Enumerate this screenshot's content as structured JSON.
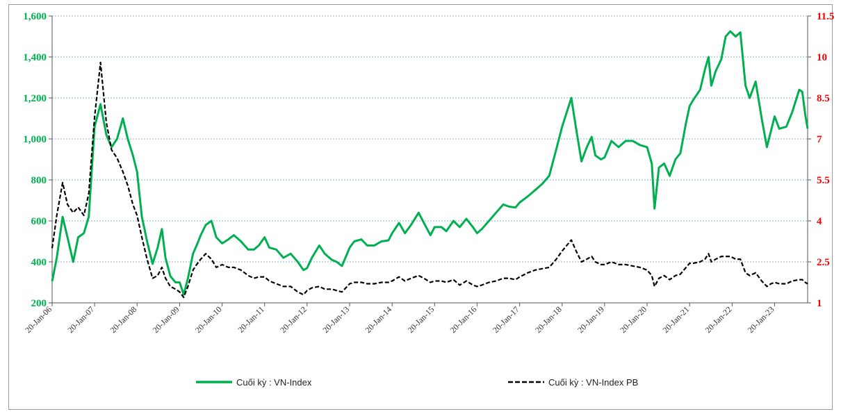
{
  "chart_data": {
    "type": "line",
    "title": "",
    "xlabel": "",
    "ylabel": "",
    "legend_position": "bottom",
    "grid": "horizontal dotted",
    "x_ticks": [
      "20-Jan-06",
      "20-Jan-07",
      "20-Jan-08",
      "20-Jan-09",
      "20-Jan-10",
      "20-Jan-11",
      "20-Jan-12",
      "20-Jan-13",
      "20-Jan-14",
      "20-Jan-15",
      "20-Jan-16",
      "20-Jan-17",
      "20-Jan-18",
      "20-Jan-19",
      "20-Jan-20",
      "20-Jan-21",
      "20-Jan-22",
      "20-Jan-23"
    ],
    "x_range": [
      "2006-01-20",
      "2023-10-31"
    ],
    "y_left": {
      "range": [
        200,
        1600
      ],
      "ticks": [
        "1,600",
        "1,400",
        "1,200",
        "1,000",
        "800",
        "600",
        "400",
        "200"
      ],
      "color": "#00b050"
    },
    "y_right": {
      "range": [
        1,
        11.5
      ],
      "ticks": [
        "11.5",
        "10",
        "8.5",
        "7",
        "5.5",
        "4",
        "2.5",
        "1"
      ],
      "color": "#ff0000"
    },
    "series": [
      {
        "name": "Cuối kỳ : VN-Index",
        "axis": "left",
        "color": "#00b050",
        "style": "solid",
        "points": [
          [
            "2006-01-20",
            305
          ],
          [
            "2006-03-01",
            420
          ],
          [
            "2006-04-20",
            620
          ],
          [
            "2006-06-01",
            520
          ],
          [
            "2006-07-20",
            400
          ],
          [
            "2006-09-01",
            520
          ],
          [
            "2006-10-20",
            540
          ],
          [
            "2006-12-01",
            620
          ],
          [
            "2007-01-20",
            1060
          ],
          [
            "2007-03-12",
            1170
          ],
          [
            "2007-05-01",
            1020
          ],
          [
            "2007-06-15",
            960
          ],
          [
            "2007-08-01",
            1000
          ],
          [
            "2007-09-20",
            1100
          ],
          [
            "2007-11-01",
            1000
          ],
          [
            "2007-12-15",
            920
          ],
          [
            "2008-01-20",
            840
          ],
          [
            "2008-03-01",
            620
          ],
          [
            "2008-04-15",
            500
          ],
          [
            "2008-06-01",
            390
          ],
          [
            "2008-07-15",
            470
          ],
          [
            "2008-08-20",
            560
          ],
          [
            "2008-09-20",
            420
          ],
          [
            "2008-11-01",
            330
          ],
          [
            "2008-12-15",
            300
          ],
          [
            "2009-01-20",
            300
          ],
          [
            "2009-02-24",
            240
          ],
          [
            "2009-04-01",
            320
          ],
          [
            "2009-05-15",
            440
          ],
          [
            "2009-06-15",
            480
          ],
          [
            "2009-07-20",
            530
          ],
          [
            "2009-09-01",
            580
          ],
          [
            "2009-10-20",
            600
          ],
          [
            "2009-12-01",
            520
          ],
          [
            "2010-01-20",
            490
          ],
          [
            "2010-03-15",
            510
          ],
          [
            "2010-05-01",
            530
          ],
          [
            "2010-07-01",
            500
          ],
          [
            "2010-09-01",
            460
          ],
          [
            "2010-10-20",
            460
          ],
          [
            "2010-12-01",
            480
          ],
          [
            "2011-01-20",
            520
          ],
          [
            "2011-03-01",
            470
          ],
          [
            "2011-05-01",
            460
          ],
          [
            "2011-07-01",
            420
          ],
          [
            "2011-09-01",
            440
          ],
          [
            "2011-11-01",
            400
          ],
          [
            "2011-12-20",
            360
          ],
          [
            "2012-01-20",
            370
          ],
          [
            "2012-03-01",
            420
          ],
          [
            "2012-05-04",
            480
          ],
          [
            "2012-06-20",
            440
          ],
          [
            "2012-08-20",
            410
          ],
          [
            "2012-10-01",
            400
          ],
          [
            "2012-11-15",
            380
          ],
          [
            "2013-01-20",
            470
          ],
          [
            "2013-03-01",
            500
          ],
          [
            "2013-05-01",
            510
          ],
          [
            "2013-06-20",
            480
          ],
          [
            "2013-08-20",
            480
          ],
          [
            "2013-10-20",
            500
          ],
          [
            "2013-12-20",
            505
          ],
          [
            "2014-01-20",
            540
          ],
          [
            "2014-03-20",
            590
          ],
          [
            "2014-05-10",
            540
          ],
          [
            "2014-07-01",
            580
          ],
          [
            "2014-09-05",
            640
          ],
          [
            "2014-10-20",
            590
          ],
          [
            "2014-12-15",
            530
          ],
          [
            "2015-01-20",
            570
          ],
          [
            "2015-03-20",
            570
          ],
          [
            "2015-05-01",
            550
          ],
          [
            "2015-07-01",
            600
          ],
          [
            "2015-08-24",
            570
          ],
          [
            "2015-10-20",
            610
          ],
          [
            "2015-12-15",
            570
          ],
          [
            "2016-01-20",
            540
          ],
          [
            "2016-03-01",
            560
          ],
          [
            "2016-05-01",
            600
          ],
          [
            "2016-07-01",
            640
          ],
          [
            "2016-09-01",
            680
          ],
          [
            "2016-10-20",
            670
          ],
          [
            "2016-12-15",
            665
          ],
          [
            "2017-01-20",
            690
          ],
          [
            "2017-04-01",
            720
          ],
          [
            "2017-06-01",
            750
          ],
          [
            "2017-08-01",
            780
          ],
          [
            "2017-10-01",
            820
          ],
          [
            "2017-12-01",
            950
          ],
          [
            "2018-01-20",
            1060
          ],
          [
            "2018-04-09",
            1200
          ],
          [
            "2018-05-20",
            1050
          ],
          [
            "2018-07-05",
            890
          ],
          [
            "2018-08-20",
            960
          ],
          [
            "2018-10-01",
            1010
          ],
          [
            "2018-11-01",
            920
          ],
          [
            "2018-12-20",
            900
          ],
          [
            "2019-01-20",
            910
          ],
          [
            "2019-03-20",
            990
          ],
          [
            "2019-05-20",
            960
          ],
          [
            "2019-07-20",
            990
          ],
          [
            "2019-09-20",
            990
          ],
          [
            "2019-11-20",
            970
          ],
          [
            "2020-01-20",
            960
          ],
          [
            "2020-03-01",
            880
          ],
          [
            "2020-03-24",
            660
          ],
          [
            "2020-05-01",
            860
          ],
          [
            "2020-06-15",
            880
          ],
          [
            "2020-08-01",
            820
          ],
          [
            "2020-09-20",
            900
          ],
          [
            "2020-11-01",
            930
          ],
          [
            "2020-12-20",
            1080
          ],
          [
            "2021-01-20",
            1160
          ],
          [
            "2021-02-20",
            1190
          ],
          [
            "2021-04-20",
            1240
          ],
          [
            "2021-06-01",
            1340
          ],
          [
            "2021-07-01",
            1400
          ],
          [
            "2021-07-25",
            1260
          ],
          [
            "2021-09-01",
            1330
          ],
          [
            "2021-10-20",
            1390
          ],
          [
            "2021-11-25",
            1500
          ],
          [
            "2022-01-04",
            1525
          ],
          [
            "2022-02-20",
            1500
          ],
          [
            "2022-04-01",
            1520
          ],
          [
            "2022-05-15",
            1260
          ],
          [
            "2022-06-20",
            1200
          ],
          [
            "2022-08-10",
            1280
          ],
          [
            "2022-10-01",
            1100
          ],
          [
            "2022-11-15",
            960
          ],
          [
            "2022-12-20",
            1040
          ],
          [
            "2023-01-20",
            1110
          ],
          [
            "2023-03-01",
            1050
          ],
          [
            "2023-05-01",
            1060
          ],
          [
            "2023-06-20",
            1130
          ],
          [
            "2023-08-20",
            1240
          ],
          [
            "2023-09-15",
            1230
          ],
          [
            "2023-10-10",
            1120
          ],
          [
            "2023-10-31",
            1050
          ]
        ]
      },
      {
        "name": "Cuối kỳ : VN-Index PB",
        "axis": "right",
        "color": "#000000",
        "style": "dashed",
        "points": [
          [
            "2006-01-20",
            3.0
          ],
          [
            "2006-03-01",
            4.2
          ],
          [
            "2006-04-20",
            5.4
          ],
          [
            "2006-06-01",
            4.6
          ],
          [
            "2006-07-20",
            4.3
          ],
          [
            "2006-09-01",
            4.5
          ],
          [
            "2006-10-20",
            4.2
          ],
          [
            "2006-12-01",
            5.0
          ],
          [
            "2007-01-20",
            7.8
          ],
          [
            "2007-03-12",
            9.8
          ],
          [
            "2007-05-01",
            7.6
          ],
          [
            "2007-06-15",
            6.6
          ],
          [
            "2007-08-01",
            6.3
          ],
          [
            "2007-09-20",
            5.8
          ],
          [
            "2007-11-01",
            5.3
          ],
          [
            "2007-12-15",
            4.6
          ],
          [
            "2008-01-20",
            4.2
          ],
          [
            "2008-03-01",
            3.4
          ],
          [
            "2008-04-15",
            2.6
          ],
          [
            "2008-06-01",
            1.9
          ],
          [
            "2008-07-15",
            2.0
          ],
          [
            "2008-08-20",
            2.3
          ],
          [
            "2008-09-20",
            1.9
          ],
          [
            "2008-11-01",
            1.6
          ],
          [
            "2008-12-15",
            1.5
          ],
          [
            "2009-01-20",
            1.4
          ],
          [
            "2009-02-24",
            1.2
          ],
          [
            "2009-04-01",
            1.6
          ],
          [
            "2009-05-15",
            2.2
          ],
          [
            "2009-06-15",
            2.4
          ],
          [
            "2009-07-20",
            2.6
          ],
          [
            "2009-09-01",
            2.8
          ],
          [
            "2009-10-20",
            2.6
          ],
          [
            "2009-12-01",
            2.3
          ],
          [
            "2010-01-20",
            2.4
          ],
          [
            "2010-03-15",
            2.3
          ],
          [
            "2010-05-01",
            2.3
          ],
          [
            "2010-07-01",
            2.2
          ],
          [
            "2010-09-01",
            2.0
          ],
          [
            "2010-10-20",
            1.9
          ],
          [
            "2010-12-01",
            1.95
          ],
          [
            "2011-01-20",
            1.95
          ],
          [
            "2011-03-01",
            1.8
          ],
          [
            "2011-05-01",
            1.7
          ],
          [
            "2011-07-01",
            1.6
          ],
          [
            "2011-09-01",
            1.6
          ],
          [
            "2011-11-01",
            1.4
          ],
          [
            "2011-12-20",
            1.3
          ],
          [
            "2012-01-20",
            1.45
          ],
          [
            "2012-03-01",
            1.55
          ],
          [
            "2012-05-04",
            1.6
          ],
          [
            "2012-06-20",
            1.5
          ],
          [
            "2012-08-20",
            1.5
          ],
          [
            "2012-10-01",
            1.45
          ],
          [
            "2012-11-15",
            1.4
          ],
          [
            "2013-01-20",
            1.7
          ],
          [
            "2013-03-01",
            1.75
          ],
          [
            "2013-05-01",
            1.75
          ],
          [
            "2013-06-20",
            1.7
          ],
          [
            "2013-08-20",
            1.7
          ],
          [
            "2013-10-20",
            1.75
          ],
          [
            "2013-12-20",
            1.75
          ],
          [
            "2014-01-20",
            1.8
          ],
          [
            "2014-03-20",
            1.95
          ],
          [
            "2014-05-10",
            1.8
          ],
          [
            "2014-07-01",
            1.9
          ],
          [
            "2014-09-05",
            2.0
          ],
          [
            "2014-10-20",
            1.9
          ],
          [
            "2014-12-15",
            1.75
          ],
          [
            "2015-01-20",
            1.8
          ],
          [
            "2015-03-20",
            1.8
          ],
          [
            "2015-05-01",
            1.75
          ],
          [
            "2015-07-01",
            1.85
          ],
          [
            "2015-08-24",
            1.65
          ],
          [
            "2015-10-20",
            1.8
          ],
          [
            "2015-12-15",
            1.65
          ],
          [
            "2016-01-20",
            1.6
          ],
          [
            "2016-03-01",
            1.65
          ],
          [
            "2016-05-01",
            1.75
          ],
          [
            "2016-07-01",
            1.8
          ],
          [
            "2016-09-01",
            1.9
          ],
          [
            "2016-10-20",
            1.9
          ],
          [
            "2016-12-15",
            1.85
          ],
          [
            "2017-01-20",
            1.95
          ],
          [
            "2017-04-01",
            2.1
          ],
          [
            "2017-06-01",
            2.2
          ],
          [
            "2017-08-01",
            2.25
          ],
          [
            "2017-10-01",
            2.3
          ],
          [
            "2017-12-01",
            2.6
          ],
          [
            "2018-01-20",
            2.9
          ],
          [
            "2018-04-09",
            3.3
          ],
          [
            "2018-05-20",
            2.9
          ],
          [
            "2018-07-05",
            2.5
          ],
          [
            "2018-08-20",
            2.6
          ],
          [
            "2018-10-01",
            2.7
          ],
          [
            "2018-11-01",
            2.5
          ],
          [
            "2018-12-20",
            2.4
          ],
          [
            "2019-01-20",
            2.4
          ],
          [
            "2019-03-20",
            2.5
          ],
          [
            "2019-05-20",
            2.4
          ],
          [
            "2019-07-20",
            2.4
          ],
          [
            "2019-09-20",
            2.35
          ],
          [
            "2019-11-20",
            2.3
          ],
          [
            "2020-01-20",
            2.2
          ],
          [
            "2020-03-01",
            2.0
          ],
          [
            "2020-03-24",
            1.6
          ],
          [
            "2020-05-01",
            1.9
          ],
          [
            "2020-06-15",
            2.0
          ],
          [
            "2020-08-01",
            1.85
          ],
          [
            "2020-09-20",
            2.0
          ],
          [
            "2020-11-01",
            2.05
          ],
          [
            "2020-12-20",
            2.3
          ],
          [
            "2021-01-20",
            2.45
          ],
          [
            "2021-02-20",
            2.45
          ],
          [
            "2021-04-20",
            2.5
          ],
          [
            "2021-06-01",
            2.6
          ],
          [
            "2021-07-01",
            2.8
          ],
          [
            "2021-07-25",
            2.5
          ],
          [
            "2021-09-01",
            2.6
          ],
          [
            "2021-10-20",
            2.7
          ],
          [
            "2021-11-25",
            2.7
          ],
          [
            "2022-01-04",
            2.7
          ],
          [
            "2022-02-20",
            2.6
          ],
          [
            "2022-04-01",
            2.6
          ],
          [
            "2022-05-15",
            2.1
          ],
          [
            "2022-06-20",
            2.0
          ],
          [
            "2022-08-10",
            2.1
          ],
          [
            "2022-10-01",
            1.8
          ],
          [
            "2022-11-15",
            1.6
          ],
          [
            "2022-12-20",
            1.7
          ],
          [
            "2023-01-20",
            1.75
          ],
          [
            "2023-03-01",
            1.7
          ],
          [
            "2023-05-01",
            1.7
          ],
          [
            "2023-06-20",
            1.8
          ],
          [
            "2023-08-20",
            1.85
          ],
          [
            "2023-09-15",
            1.85
          ],
          [
            "2023-10-10",
            1.75
          ],
          [
            "2023-10-31",
            1.7
          ]
        ]
      }
    ]
  }
}
